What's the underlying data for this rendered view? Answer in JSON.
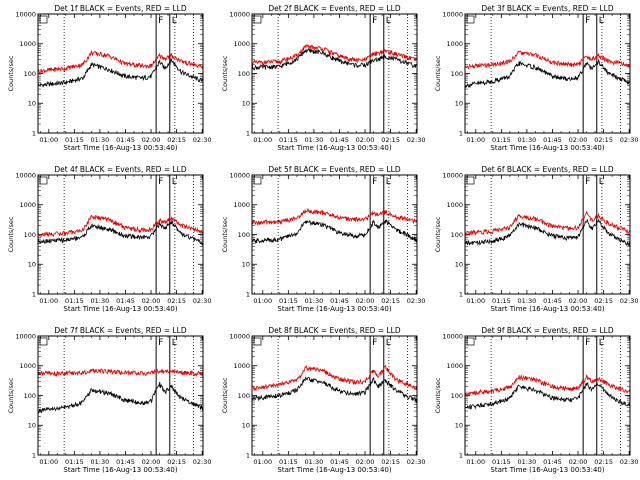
{
  "chart_data": [
    {
      "type": "line",
      "title": "Det 1f BLACK = Events, RED = LLD",
      "xlabel": "Start Time (16-Aug-13 00:53:40)",
      "ylabel": "Counts/sec",
      "x_ticks": [
        "01:00",
        "01:15",
        "01:30",
        "01:45",
        "02:00",
        "02:15",
        "02:30"
      ],
      "y_ticks": [
        "1",
        "10",
        "100",
        "1000",
        "10000"
      ],
      "ylim": [
        1,
        10000
      ],
      "scale": "log",
      "markers": [
        {
          "label": "F",
          "time": "02:03"
        },
        {
          "label": "L",
          "time": "02:11"
        }
      ],
      "dotted_lines": [
        "01:09",
        "02:14",
        "02:25"
      ],
      "series": [
        {
          "color": "#000000",
          "x": [
            "00:54",
            "01:10",
            "01:20",
            "01:25",
            "01:35",
            "01:45",
            "01:55",
            "02:00",
            "02:05",
            "02:08",
            "02:12",
            "02:18",
            "02:32"
          ],
          "values": [
            40,
            50,
            70,
            200,
            140,
            80,
            70,
            80,
            250,
            150,
            280,
            110,
            50
          ]
        },
        {
          "color": "#dd0000",
          "x": [
            "00:54",
            "01:10",
            "01:20",
            "01:25",
            "01:35",
            "01:45",
            "01:55",
            "02:00",
            "02:05",
            "02:08",
            "02:12",
            "02:18",
            "02:32"
          ],
          "values": [
            120,
            150,
            200,
            500,
            400,
            210,
            180,
            180,
            400,
            320,
            400,
            260,
            150
          ]
        }
      ]
    },
    {
      "type": "line",
      "title": "Det 2f BLACK = Events, RED = LLD",
      "xlabel": "Start Time (16-Aug-13 00:53:40)",
      "ylabel": "Counts/sec",
      "x_ticks": [
        "01:00",
        "01:15",
        "01:30",
        "01:45",
        "02:00",
        "02:15",
        "02:30"
      ],
      "y_ticks": [
        "1",
        "10",
        "100",
        "1000",
        "10000"
      ],
      "ylim": [
        1,
        10000
      ],
      "scale": "log",
      "markers": [
        {
          "label": "F",
          "time": "02:03"
        },
        {
          "label": "L",
          "time": "02:11"
        }
      ],
      "dotted_lines": [
        "01:09",
        "02:14",
        "02:25"
      ],
      "series": [
        {
          "color": "#000000",
          "x": [
            "00:54",
            "01:10",
            "01:20",
            "01:25",
            "01:35",
            "01:45",
            "01:55",
            "02:00",
            "02:05",
            "02:08",
            "02:12",
            "02:18",
            "02:32"
          ],
          "values": [
            160,
            170,
            300,
            600,
            500,
            260,
            190,
            190,
            280,
            300,
            380,
            300,
            160
          ]
        },
        {
          "color": "#dd0000",
          "x": [
            "00:54",
            "01:10",
            "01:20",
            "01:25",
            "01:35",
            "01:45",
            "01:55",
            "02:00",
            "02:05",
            "02:08",
            "02:12",
            "02:18",
            "02:32"
          ],
          "values": [
            230,
            250,
            400,
            800,
            700,
            380,
            280,
            280,
            450,
            500,
            580,
            450,
            260
          ]
        }
      ]
    },
    {
      "type": "line",
      "title": "Det 3f BLACK = Events, RED = LLD",
      "xlabel": "Start Time (16-Aug-13 00:53:40)",
      "ylabel": "Counts/sec",
      "x_ticks": [
        "01:00",
        "01:15",
        "01:30",
        "01:45",
        "02:00",
        "02:15",
        "02:30"
      ],
      "y_ticks": [
        "1",
        "10",
        "100",
        "1000",
        "10000"
      ],
      "ylim": [
        1,
        10000
      ],
      "scale": "log",
      "markers": [
        {
          "label": "F",
          "time": "02:03"
        },
        {
          "label": "L",
          "time": "02:11"
        }
      ],
      "dotted_lines": [
        "01:09",
        "02:14",
        "02:25"
      ],
      "series": [
        {
          "color": "#000000",
          "x": [
            "00:54",
            "01:10",
            "01:20",
            "01:25",
            "01:35",
            "01:45",
            "01:55",
            "02:00",
            "02:05",
            "02:08",
            "02:12",
            "02:18",
            "02:32"
          ],
          "values": [
            40,
            55,
            80,
            220,
            160,
            80,
            65,
            75,
            230,
            140,
            250,
            100,
            45
          ]
        },
        {
          "color": "#dd0000",
          "x": [
            "00:54",
            "01:10",
            "01:20",
            "01:25",
            "01:35",
            "01:45",
            "01:55",
            "02:00",
            "02:05",
            "02:08",
            "02:12",
            "02:18",
            "02:32"
          ],
          "values": [
            170,
            200,
            260,
            500,
            420,
            240,
            200,
            200,
            380,
            300,
            400,
            260,
            180
          ]
        }
      ]
    },
    {
      "type": "line",
      "title": "Det 4f BLACK = Events, RED = LLD",
      "xlabel": "Start Time (16-Aug-13 00:53:40)",
      "ylabel": "Counts/sec",
      "x_ticks": [
        "01:00",
        "01:15",
        "01:30",
        "01:45",
        "02:00",
        "02:15",
        "02:30"
      ],
      "y_ticks": [
        "1",
        "10",
        "100",
        "1000",
        "10000"
      ],
      "ylim": [
        1,
        10000
      ],
      "scale": "log",
      "markers": [
        {
          "label": "F",
          "time": "02:03"
        },
        {
          "label": "L",
          "time": "02:11"
        }
      ],
      "dotted_lines": [
        "01:09",
        "02:14",
        "02:25"
      ],
      "series": [
        {
          "color": "#000000",
          "x": [
            "00:54",
            "01:10",
            "01:20",
            "01:25",
            "01:35",
            "01:45",
            "01:55",
            "02:00",
            "02:05",
            "02:08",
            "02:12",
            "02:18",
            "02:32"
          ],
          "values": [
            60,
            65,
            85,
            200,
            150,
            90,
            80,
            90,
            230,
            160,
            260,
            110,
            45
          ]
        },
        {
          "color": "#dd0000",
          "x": [
            "00:54",
            "01:10",
            "01:20",
            "01:25",
            "01:35",
            "01:45",
            "01:55",
            "02:00",
            "02:05",
            "02:08",
            "02:12",
            "02:18",
            "02:32"
          ],
          "values": [
            100,
            110,
            140,
            400,
            320,
            170,
            140,
            150,
            300,
            250,
            350,
            200,
            110
          ]
        }
      ]
    },
    {
      "type": "line",
      "title": "Det 5f BLACK = Events, RED = LLD",
      "xlabel": "Start Time (16-Aug-13 00:53:40)",
      "ylabel": "Counts/sec",
      "x_ticks": [
        "01:00",
        "01:15",
        "01:30",
        "01:45",
        "02:00",
        "02:15",
        "02:30"
      ],
      "y_ticks": [
        "1",
        "10",
        "100",
        "1000",
        "10000"
      ],
      "ylim": [
        1,
        10000
      ],
      "scale": "log",
      "markers": [
        {
          "label": "F",
          "time": "02:03"
        },
        {
          "label": "L",
          "time": "02:11"
        }
      ],
      "dotted_lines": [
        "01:09",
        "02:14",
        "02:25"
      ],
      "series": [
        {
          "color": "#000000",
          "x": [
            "00:54",
            "01:10",
            "01:20",
            "01:25",
            "01:35",
            "01:45",
            "01:55",
            "02:00",
            "02:05",
            "02:08",
            "02:12",
            "02:18",
            "02:32"
          ],
          "values": [
            60,
            70,
            110,
            270,
            220,
            110,
            90,
            100,
            260,
            180,
            290,
            150,
            60
          ]
        },
        {
          "color": "#dd0000",
          "x": [
            "00:54",
            "01:10",
            "01:20",
            "01:25",
            "01:35",
            "01:45",
            "01:55",
            "02:00",
            "02:05",
            "02:08",
            "02:12",
            "02:18",
            "02:32"
          ],
          "values": [
            250,
            270,
            350,
            650,
            550,
            370,
            320,
            320,
            550,
            450,
            580,
            400,
            270
          ]
        }
      ]
    },
    {
      "type": "line",
      "title": "Det 6f BLACK = Events, RED = LLD",
      "xlabel": "Start Time (16-Aug-13 00:53:40)",
      "ylabel": "Counts/sec",
      "x_ticks": [
        "01:00",
        "01:15",
        "01:30",
        "01:45",
        "02:00",
        "02:15",
        "02:30"
      ],
      "y_ticks": [
        "1",
        "10",
        "100",
        "1000",
        "10000"
      ],
      "ylim": [
        1,
        10000
      ],
      "scale": "log",
      "markers": [
        {
          "label": "F",
          "time": "02:03"
        },
        {
          "label": "L",
          "time": "02:11"
        }
      ],
      "dotted_lines": [
        "01:09",
        "02:14",
        "02:25"
      ],
      "series": [
        {
          "color": "#000000",
          "x": [
            "00:54",
            "01:10",
            "01:20",
            "01:25",
            "01:35",
            "01:45",
            "01:55",
            "02:00",
            "02:05",
            "02:08",
            "02:12",
            "02:18",
            "02:32"
          ],
          "values": [
            50,
            60,
            90,
            220,
            170,
            90,
            75,
            85,
            300,
            160,
            280,
            110,
            40
          ]
        },
        {
          "color": "#dd0000",
          "x": [
            "00:54",
            "01:10",
            "01:20",
            "01:25",
            "01:35",
            "01:45",
            "01:55",
            "02:00",
            "02:05",
            "02:08",
            "02:12",
            "02:18",
            "02:32"
          ],
          "values": [
            110,
            130,
            170,
            420,
            340,
            190,
            160,
            170,
            500,
            300,
            420,
            230,
            110
          ]
        }
      ]
    },
    {
      "type": "line",
      "title": "Det 7f BLACK = Events, RED = LLD",
      "xlabel": "Start Time (16-Aug-13 00:53:40)",
      "ylabel": "Counts/sec",
      "x_ticks": [
        "01:00",
        "01:15",
        "01:30",
        "01:45",
        "02:00",
        "02:15",
        "02:30"
      ],
      "y_ticks": [
        "1",
        "10",
        "100",
        "1000",
        "10000"
      ],
      "ylim": [
        1,
        10000
      ],
      "scale": "log",
      "markers": [
        {
          "label": "F",
          "time": "02:03"
        },
        {
          "label": "L",
          "time": "02:11"
        }
      ],
      "dotted_lines": [
        "01:09",
        "02:14",
        "02:25"
      ],
      "series": [
        {
          "color": "#000000",
          "x": [
            "00:54",
            "01:10",
            "01:20",
            "01:25",
            "01:35",
            "01:45",
            "01:55",
            "02:00",
            "02:05",
            "02:08",
            "02:12",
            "02:18",
            "02:32"
          ],
          "values": [
            30,
            40,
            60,
            150,
            120,
            70,
            55,
            65,
            250,
            130,
            200,
            80,
            35
          ]
        },
        {
          "color": "#dd0000",
          "x": [
            "00:54",
            "01:10",
            "01:20",
            "01:25",
            "01:35",
            "01:45",
            "01:55",
            "02:00",
            "02:05",
            "02:08",
            "02:12",
            "02:18",
            "02:32"
          ],
          "values": [
            550,
            560,
            600,
            700,
            650,
            580,
            560,
            560,
            700,
            620,
            680,
            590,
            540
          ]
        }
      ]
    },
    {
      "type": "line",
      "title": "Det 8f BLACK = Events, RED = LLD",
      "xlabel": "Start Time (16-Aug-13 00:53:40)",
      "ylabel": "Counts/sec",
      "x_ticks": [
        "01:00",
        "01:15",
        "01:30",
        "01:45",
        "02:00",
        "02:15",
        "02:30"
      ],
      "y_ticks": [
        "1",
        "10",
        "100",
        "1000",
        "10000"
      ],
      "ylim": [
        1,
        10000
      ],
      "scale": "log",
      "markers": [
        {
          "label": "F",
          "time": "02:03"
        },
        {
          "label": "L",
          "time": "02:11"
        }
      ],
      "dotted_lines": [
        "01:09",
        "02:14",
        "02:25"
      ],
      "series": [
        {
          "color": "#000000",
          "x": [
            "00:54",
            "01:10",
            "01:20",
            "01:25",
            "01:35",
            "01:45",
            "01:55",
            "02:00",
            "02:05",
            "02:08",
            "02:12",
            "02:18",
            "02:32"
          ],
          "values": [
            80,
            100,
            150,
            360,
            280,
            140,
            110,
            130,
            350,
            200,
            320,
            150,
            60
          ]
        },
        {
          "color": "#dd0000",
          "x": [
            "00:54",
            "01:10",
            "01:20",
            "01:25",
            "01:35",
            "01:45",
            "01:55",
            "02:00",
            "02:05",
            "02:08",
            "02:12",
            "02:18",
            "02:32"
          ],
          "values": [
            180,
            230,
            320,
            850,
            700,
            350,
            280,
            300,
            700,
            450,
            900,
            350,
            160
          ]
        }
      ]
    },
    {
      "type": "line",
      "title": "Det 9f BLACK = Events, RED = LLD",
      "xlabel": "Start Time (16-Aug-13 00:53:40)",
      "ylabel": "Counts/sec",
      "x_ticks": [
        "01:00",
        "01:15",
        "01:30",
        "01:45",
        "02:00",
        "02:15",
        "02:30"
      ],
      "y_ticks": [
        "1",
        "10",
        "100",
        "1000",
        "10000"
      ],
      "ylim": [
        1,
        10000
      ],
      "scale": "log",
      "markers": [
        {
          "label": "F",
          "time": "02:03"
        },
        {
          "label": "L",
          "time": "02:11"
        }
      ],
      "dotted_lines": [
        "01:09",
        "02:14",
        "02:25"
      ],
      "series": [
        {
          "color": "#000000",
          "x": [
            "00:54",
            "01:10",
            "01:20",
            "01:25",
            "01:35",
            "01:45",
            "01:55",
            "02:00",
            "02:05",
            "02:08",
            "02:12",
            "02:18",
            "02:32"
          ],
          "values": [
            40,
            55,
            80,
            200,
            150,
            85,
            70,
            80,
            260,
            150,
            250,
            100,
            40
          ]
        },
        {
          "color": "#dd0000",
          "x": [
            "00:54",
            "01:10",
            "01:20",
            "01:25",
            "01:35",
            "01:45",
            "01:55",
            "02:00",
            "02:05",
            "02:08",
            "02:12",
            "02:18",
            "02:32"
          ],
          "values": [
            120,
            140,
            190,
            420,
            340,
            200,
            170,
            180,
            420,
            300,
            380,
            230,
            120
          ]
        }
      ]
    }
  ]
}
